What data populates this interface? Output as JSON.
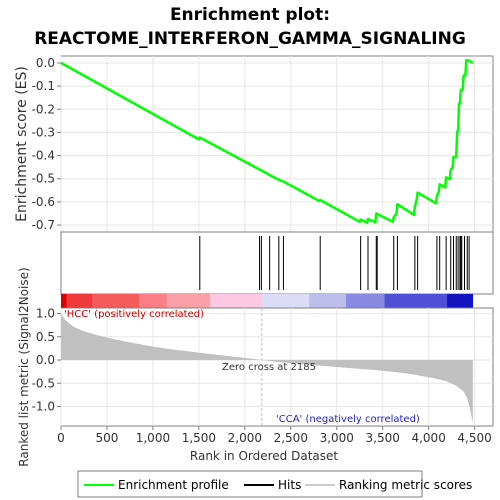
{
  "chart_data": {
    "type": "line",
    "title_line1": "Enrichment plot:",
    "title_line2": "REACTOME_INTERFERON_GAMMA_SIGNALING",
    "top_panel": {
      "ylabel": "Enrichment score (ES)",
      "ylim": [
        -0.73,
        0.03
      ],
      "yticks": [
        0.0,
        -0.1,
        -0.2,
        -0.3,
        -0.4,
        -0.5,
        -0.6,
        -0.7
      ],
      "ytick_labels": [
        "0.0",
        "-0.1",
        "-0.2",
        "-0.3",
        "-0.4",
        "-0.5",
        "-0.6",
        "-0.7"
      ],
      "series": [
        {
          "name": "Enrichment profile",
          "color": "#00ff00",
          "x": [
            0,
            1500,
            1510,
            2160,
            2180,
            2270,
            2370,
            2420,
            2810,
            2820,
            3250,
            3260,
            3330,
            3340,
            3420,
            3430,
            3610,
            3620,
            3650,
            3660,
            3840,
            3850,
            3870,
            3880,
            4080,
            4090,
            4110,
            4120,
            4180,
            4190,
            4230,
            4240,
            4260,
            4270,
            4300,
            4310,
            4320,
            4330,
            4340,
            4350,
            4370,
            4380,
            4400,
            4410,
            4430,
            4480
          ],
          "y": [
            0.0,
            -0.33,
            -0.322,
            -0.46,
            -0.464,
            -0.484,
            -0.504,
            -0.512,
            -0.596,
            -0.592,
            -0.686,
            -0.676,
            -0.69,
            -0.674,
            -0.688,
            -0.65,
            -0.686,
            -0.666,
            -0.65,
            -0.61,
            -0.656,
            -0.62,
            -0.59,
            -0.56,
            -0.606,
            -0.574,
            -0.556,
            -0.524,
            -0.538,
            -0.494,
            -0.502,
            -0.462,
            -0.452,
            -0.406,
            -0.406,
            -0.296,
            -0.296,
            -0.176,
            -0.176,
            -0.116,
            -0.116,
            -0.054,
            -0.054,
            0.012,
            0.012,
            0.0
          ]
        }
      ]
    },
    "hits": [
      1510,
      2160,
      2180,
      2270,
      2370,
      2420,
      2820,
      3260,
      3340,
      3430,
      3440,
      3620,
      3660,
      3850,
      3880,
      4090,
      4120,
      4190,
      4240,
      4270,
      4300,
      4320,
      4340,
      4350,
      4360,
      4390,
      4420,
      4440
    ],
    "color_bar": {
      "segments": [
        {
          "from": 0,
          "to": 60,
          "color": "#dd0000"
        },
        {
          "from": 60,
          "to": 340,
          "color": "#ee3a3a"
        },
        {
          "from": 340,
          "to": 850,
          "color": "#f45c5c"
        },
        {
          "from": 850,
          "to": 1150,
          "color": "#fa7e86"
        },
        {
          "from": 1150,
          "to": 1620,
          "color": "#fca0a8"
        },
        {
          "from": 1620,
          "to": 2180,
          "color": "#fcc8e2"
        },
        {
          "from": 2180,
          "to": 2700,
          "color": "#dcdcf6"
        },
        {
          "from": 2700,
          "to": 3100,
          "color": "#bebeec"
        },
        {
          "from": 3100,
          "to": 3520,
          "color": "#8a8ae2"
        },
        {
          "from": 3520,
          "to": 4200,
          "color": "#5050d6"
        },
        {
          "from": 4200,
          "to": 4480,
          "color": "#1414bf"
        }
      ]
    },
    "bottom_panel": {
      "ylabel": "Ranked list metric (Signal2Noise)",
      "xlabel": "Rank in Ordered Dataset",
      "ylim": [
        -1.42,
        1.12
      ],
      "yticks": [
        1.0,
        0.5,
        0.0,
        -0.5,
        -1.0
      ],
      "ytick_labels": [
        "1.0",
        "0.5",
        "0.0",
        "-0.5",
        "-1.0"
      ],
      "xlim": [
        0,
        4700
      ],
      "xticks": [
        0,
        500,
        1000,
        1500,
        2000,
        2500,
        3000,
        3500,
        4000,
        4500
      ],
      "xtick_labels": [
        "0",
        "500",
        "1,000",
        "1,500",
        "2,000",
        "2,500",
        "3,000",
        "3,500",
        "4,000",
        "4,500"
      ],
      "metric_x": [
        0,
        30,
        80,
        150,
        250,
        400,
        600,
        800,
        1000,
        1200,
        1500,
        1800,
        2000,
        2185,
        2400,
        2700,
        3000,
        3300,
        3600,
        3800,
        4000,
        4100,
        4200,
        4300,
        4380,
        4420,
        4450,
        4470,
        4480
      ],
      "metric_y": [
        1.0,
        0.9,
        0.8,
        0.7,
        0.62,
        0.53,
        0.44,
        0.36,
        0.29,
        0.23,
        0.16,
        0.09,
        0.045,
        0.0,
        -0.05,
        -0.1,
        -0.15,
        -0.2,
        -0.25,
        -0.3,
        -0.37,
        -0.41,
        -0.46,
        -0.55,
        -0.68,
        -0.83,
        -1.05,
        -1.25,
        -1.35
      ],
      "zero_cross": 2185,
      "zero_cross_label": "Zero cross at 2185",
      "pos_label": "'HCC' (positively correlated)",
      "neg_label": "'CCA' (negatively correlated)"
    },
    "legend": {
      "entries": [
        "Enrichment profile",
        "Hits",
        "Ranking metric scores"
      ],
      "colors": [
        "#00ff00",
        "#000000",
        "#cccccc"
      ]
    }
  }
}
